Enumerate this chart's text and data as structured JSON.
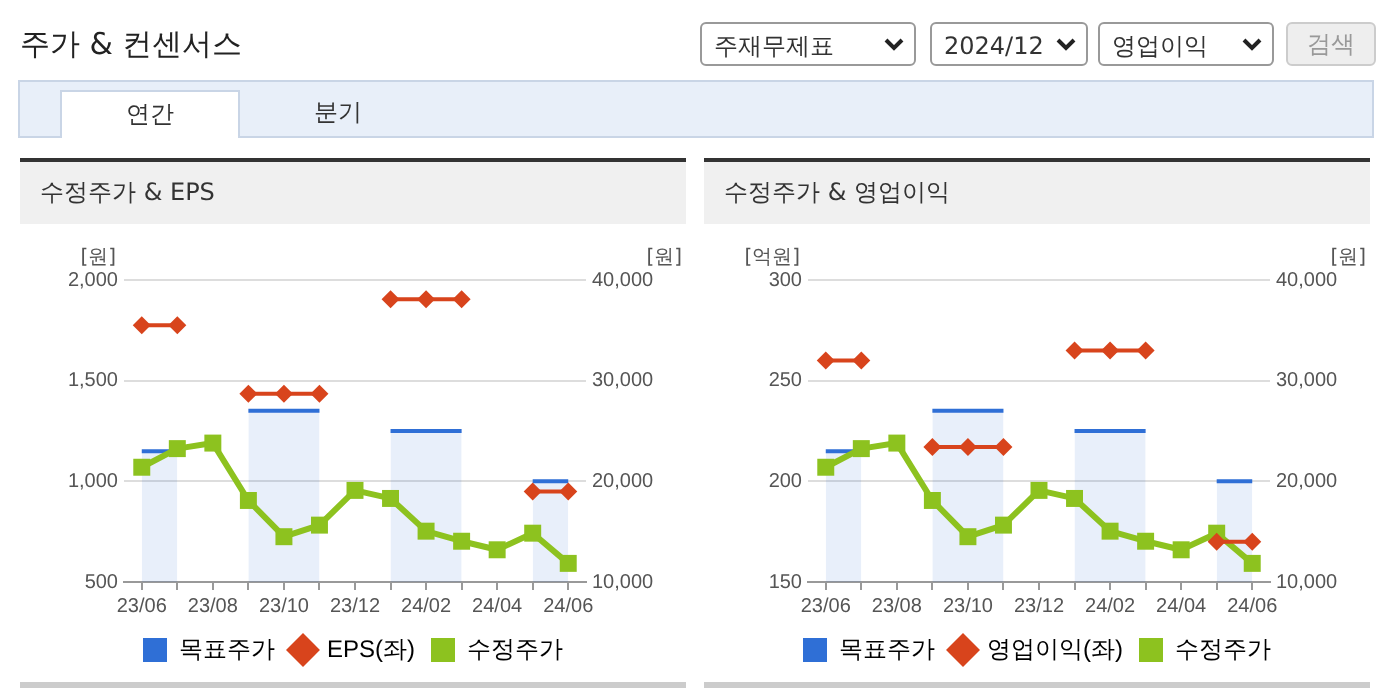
{
  "chart_data": [
    {
      "type": "other",
      "title": "주가 & 컨센서스",
      "annotations": [
        "주재무제표",
        "2024/12",
        "영업이익",
        "검색",
        "연간",
        "분기"
      ]
    },
    {
      "type": "line",
      "title": "수정주가 & EPS",
      "ylabel": "[원]",
      "y2label": "[원]",
      "categories": [
        "23/06",
        null,
        "23/08",
        null,
        "23/10",
        null,
        "23/12",
        null,
        "24/02",
        null,
        "24/04",
        null,
        "24/06"
      ],
      "series": [
        {
          "name": "목표주가",
          "type": "area",
          "axis": "y2",
          "color": "#2f6fd6",
          "values": [
            23000,
            23000,
            null,
            27000,
            27000,
            27000,
            null,
            25000,
            25000,
            25000,
            null,
            20000,
            20000
          ]
        },
        {
          "name": "EPS(좌)",
          "type": "line",
          "axis": "y",
          "color": "#d8441c",
          "marker": "diamond",
          "values": [
            1775,
            1775,
            null,
            1435,
            1435,
            1435,
            null,
            1905,
            1905,
            1905,
            null,
            950,
            950
          ]
        },
        {
          "name": "수정주가",
          "type": "line",
          "axis": "y2",
          "color": "#8dc21f",
          "marker": "square",
          "values": [
            21400,
            23250,
            23800,
            18100,
            14500,
            15650,
            19100,
            18300,
            15050,
            14050,
            13200,
            14850,
            11850
          ]
        }
      ],
      "ylim": [
        500,
        2000
      ],
      "yticks": [
        {
          "value": 500,
          "label": "500"
        },
        {
          "value": 1000,
          "label": "1,000"
        },
        {
          "value": 1500,
          "label": "1,500"
        },
        {
          "value": 2000,
          "label": "2,000"
        }
      ],
      "y2lim": [
        10000,
        40000
      ],
      "y2ticks": [
        {
          "value": 10000,
          "label": "10,000"
        },
        {
          "value": 20000,
          "label": "20,000"
        },
        {
          "value": 30000,
          "label": "30,000"
        },
        {
          "value": 40000,
          "label": "40,000"
        }
      ],
      "grid": "y",
      "legend": "bottom"
    },
    {
      "type": "line",
      "title": "수정주가 & 영업이익",
      "ylabel": "[억원]",
      "y2label": "[원]",
      "categories": [
        "23/06",
        null,
        "23/08",
        null,
        "23/10",
        null,
        "23/12",
        null,
        "24/02",
        null,
        "24/04",
        null,
        "24/06"
      ],
      "series": [
        {
          "name": "목표주가",
          "type": "area",
          "axis": "y2",
          "color": "#2f6fd6",
          "values": [
            23000,
            23000,
            null,
            27000,
            27000,
            27000,
            null,
            25000,
            25000,
            25000,
            null,
            20000,
            20000
          ]
        },
        {
          "name": "영업이익(좌)",
          "type": "line",
          "axis": "y",
          "color": "#d8441c",
          "marker": "diamond",
          "values": [
            260,
            260,
            null,
            217,
            217,
            217,
            null,
            265,
            265,
            265,
            null,
            170,
            170
          ]
        },
        {
          "name": "수정주가",
          "type": "line",
          "axis": "y2",
          "color": "#8dc21f",
          "marker": "square",
          "values": [
            21400,
            23250,
            23800,
            18100,
            14500,
            15650,
            19100,
            18300,
            15050,
            14050,
            13200,
            14850,
            11850
          ]
        }
      ],
      "ylim": [
        150,
        300
      ],
      "yticks": [
        150,
        200,
        250,
        300
      ],
      "y2lim": [
        10000,
        40000
      ],
      "y2ticks": [
        {
          "value": 10000,
          "label": "10,000"
        },
        {
          "value": 20000,
          "label": "20,000"
        },
        {
          "value": 30000,
          "label": "30,000"
        },
        {
          "value": 40000,
          "label": "40,000"
        }
      ],
      "grid": "y",
      "legend": "bottom"
    }
  ]
}
